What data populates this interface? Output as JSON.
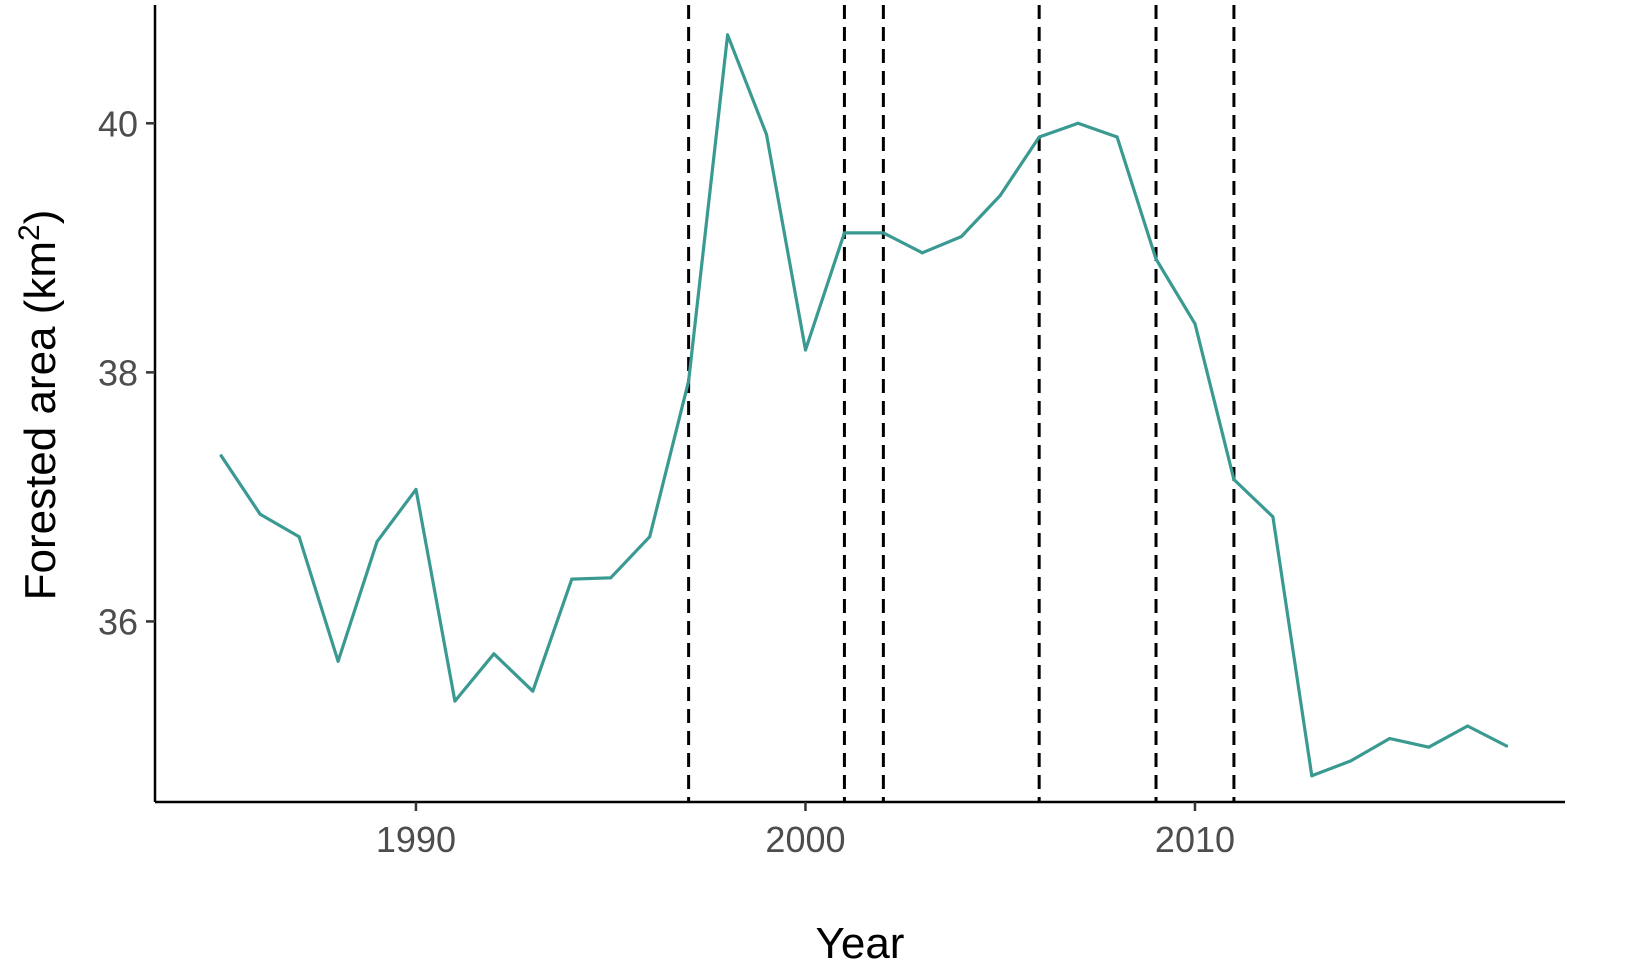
{
  "chart_data": {
    "type": "line",
    "title": "",
    "xlabel": "Year",
    "ylabel": "Forested area (km",
    "ylabel_superscript": "2",
    "ylabel_close": ")",
    "xlim": [
      1983.3,
      2019.5
    ],
    "ylim": [
      34.55,
      40.95
    ],
    "x_ticks": [
      1990,
      2000,
      2010
    ],
    "y_ticks": [
      36,
      38,
      40
    ],
    "grid": false,
    "legend": "none",
    "line_color": "#3a9a92",
    "vline_color": "#000000",
    "vlines": [
      1997,
      2001,
      2002,
      2006,
      2009,
      2011
    ],
    "series": [
      {
        "x": [
          1985,
          1986,
          1987,
          1988,
          1989,
          1990,
          1991,
          1992,
          1993,
          1994,
          1995,
          1996,
          1997,
          1998,
          1999,
          2000,
          2001,
          2002,
          2003,
          2004,
          2005,
          2006,
          2007,
          2008,
          2009,
          2010,
          2011,
          2012,
          2013,
          2014,
          2015,
          2016,
          2017,
          2018
        ],
        "values": [
          37.33,
          36.86,
          36.68,
          35.68,
          36.64,
          37.06,
          35.36,
          35.74,
          35.44,
          36.34,
          36.35,
          36.68,
          37.93,
          40.71,
          39.91,
          38.18,
          39.12,
          39.12,
          38.96,
          39.09,
          39.42,
          39.89,
          40.0,
          39.89,
          38.91,
          38.39,
          37.14,
          36.84,
          34.76,
          34.88,
          35.06,
          34.99,
          35.16,
          35.0
        ]
      }
    ]
  }
}
